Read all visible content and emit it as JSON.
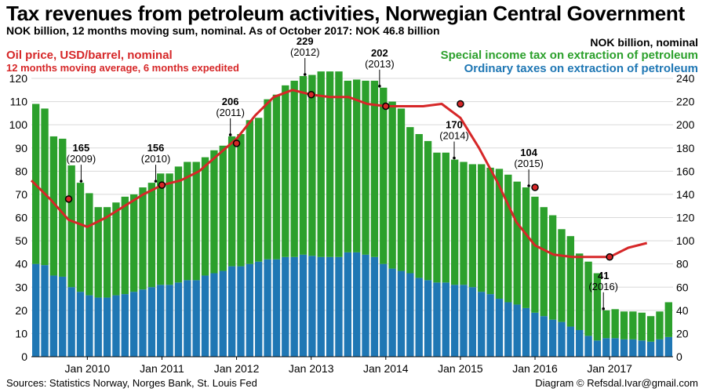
{
  "header": {
    "title": "Tax revenues from petroleum activities, Norwegian Central Government",
    "subtitle": "NOK billion, 12 months moving sum, nominal. As of October 2017: NOK 46.8 billion",
    "right_axis_label": "NOK billion, nominal",
    "oil_label": "Oil price, USD/barrel, nominal",
    "oil_sublabel": "12 months moving average, 6 months expedited"
  },
  "legend": {
    "special": "Special income tax on extraction of petroleum",
    "ordinary": "Ordinary taxes on extraction of petroleum"
  },
  "footer": {
    "sources": "Sources: Statistics Norway, Norges Bank, St. Louis Fed",
    "credit": "Diagram © Refsdal.Ivar@gmail.com"
  },
  "colors": {
    "special": "#2ca02c",
    "ordinary": "#1f77b4",
    "oil": "#d62728",
    "grid": "#d9d9d9"
  },
  "chart_data": {
    "type": "bar",
    "stacked": true,
    "left_axis": {
      "label": "",
      "ylim": [
        0,
        120
      ],
      "ticks": [
        0,
        10,
        20,
        30,
        40,
        50,
        60,
        70,
        80,
        90,
        100,
        110,
        120
      ]
    },
    "right_axis": {
      "label": "NOK billion, nominal",
      "ylim": [
        0,
        240
      ],
      "ticks": [
        0,
        20,
        40,
        60,
        80,
        100,
        120,
        140,
        160,
        180,
        200,
        220,
        240
      ]
    },
    "x_ticks": [
      "Jan 2010",
      "Jan 2011",
      "Jan 2012",
      "Jan 2013",
      "Jan 2014",
      "Jan 2015",
      "Jan 2016",
      "Jan 2017"
    ],
    "grid": true,
    "bar_interval": "2 months",
    "bars_start": "2009-04",
    "series": [
      {
        "name": "Ordinary taxes on extraction of petroleum",
        "axis": "right",
        "values": [
          80,
          79,
          70,
          69,
          60,
          56,
          53,
          51,
          51,
          53,
          54,
          56,
          58,
          60,
          62,
          62,
          64,
          66,
          66,
          70,
          72,
          74,
          78,
          78,
          80,
          82,
          84,
          84,
          86,
          86,
          88,
          87,
          86,
          86,
          86,
          90,
          90,
          88,
          86,
          80,
          76,
          74,
          72,
          68,
          66,
          64,
          64,
          62,
          62,
          60,
          56,
          54,
          50,
          47,
          45,
          42,
          38,
          35,
          32,
          30,
          26,
          23,
          18,
          14,
          16,
          16,
          15,
          15,
          14,
          13,
          15,
          17
        ]
      },
      {
        "name": "Special income tax on extraction of petroleum",
        "axis": "right",
        "values": [
          138,
          135,
          120,
          119,
          105,
          94,
          88,
          78,
          78,
          80,
          84,
          84,
          88,
          90,
          96,
          96,
          100,
          102,
          102,
          102,
          106,
          108,
          112,
          114,
          124,
          124,
          138,
          142,
          148,
          152,
          154,
          156,
          160,
          160,
          160,
          148,
          149,
          150,
          152,
          152,
          144,
          140,
          126,
          124,
          120,
          112,
          112,
          108,
          106,
          106,
          110,
          109,
          112,
          110,
          106,
          104,
          100,
          94,
          90,
          80,
          78,
          66,
          64,
          58,
          24,
          25,
          24,
          24,
          24,
          22,
          24,
          30
        ]
      },
      {
        "name": "Oil price, USD/barrel, nominal",
        "axis": "left",
        "type": "line",
        "points": [
          [
            "2009-04",
            76
          ],
          [
            "2009-07",
            68
          ],
          [
            "2009-10",
            59
          ],
          [
            "2010-01",
            56
          ],
          [
            "2010-04",
            60
          ],
          [
            "2010-07",
            65
          ],
          [
            "2010-10",
            70
          ],
          [
            "2011-01",
            74
          ],
          [
            "2011-04",
            76
          ],
          [
            "2011-07",
            80
          ],
          [
            "2011-10",
            87
          ],
          [
            "2012-01",
            94
          ],
          [
            "2012-04",
            104
          ],
          [
            "2012-07",
            112
          ],
          [
            "2012-10",
            115
          ],
          [
            "2013-01",
            113
          ],
          [
            "2013-04",
            112
          ],
          [
            "2013-07",
            112
          ],
          [
            "2013-10",
            109
          ],
          [
            "2014-01",
            108
          ],
          [
            "2014-04",
            108
          ],
          [
            "2014-07",
            108
          ],
          [
            "2014-10",
            109
          ],
          [
            "2015-01",
            103
          ],
          [
            "2015-04",
            90
          ],
          [
            "2015-07",
            75
          ],
          [
            "2015-10",
            58
          ],
          [
            "2016-01",
            48
          ],
          [
            "2016-04",
            44
          ],
          [
            "2016-07",
            43
          ],
          [
            "2016-10",
            43
          ],
          [
            "2017-01",
            43
          ],
          [
            "2017-04",
            47
          ],
          [
            "2017-07",
            49
          ]
        ],
        "markers": [
          [
            "2009-10",
            68
          ],
          [
            "2011-01",
            74
          ],
          [
            "2012-01",
            92
          ],
          [
            "2013-01",
            113
          ],
          [
            "2014-01",
            108
          ],
          [
            "2015-01",
            109
          ],
          [
            "2016-01",
            73
          ],
          [
            "2017-01",
            43
          ]
        ]
      }
    ],
    "annotations": [
      {
        "value": "165",
        "year": "(2009)",
        "x": "2009-12"
      },
      {
        "value": "156",
        "year": "(2010)",
        "x": "2010-12"
      },
      {
        "value": "206",
        "year": "(2011)",
        "x": "2011-12"
      },
      {
        "value": "229",
        "year": "(2012)",
        "x": "2012-12"
      },
      {
        "value": "202",
        "year": "(2013)",
        "x": "2013-12"
      },
      {
        "value": "170",
        "year": "(2014)",
        "x": "2014-12"
      },
      {
        "value": "104",
        "year": "(2015)",
        "x": "2015-12"
      },
      {
        "value": "41",
        "year": "(2016)",
        "x": "2016-12"
      }
    ]
  }
}
